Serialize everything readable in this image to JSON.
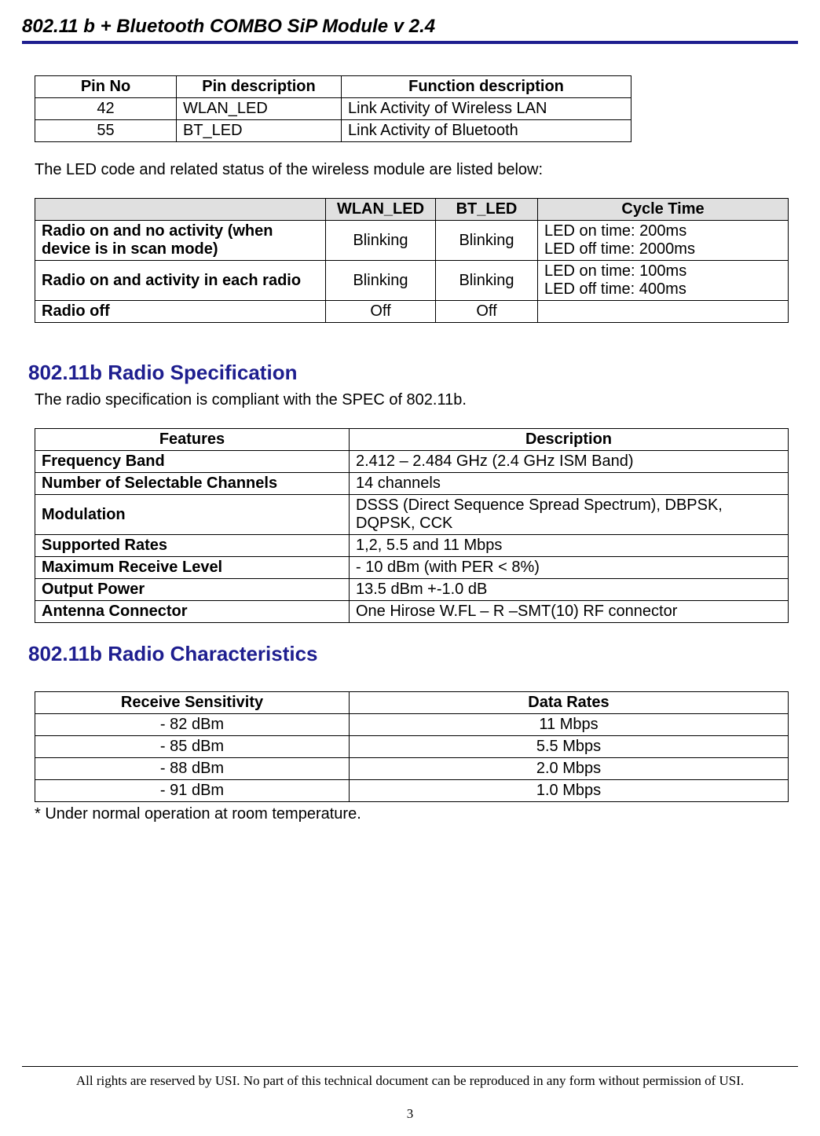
{
  "header": {
    "title": "802.11 b + Bluetooth COMBO SiP Module v 2.4"
  },
  "pin_table": {
    "headers": [
      "Pin No",
      "Pin description",
      "Function description"
    ],
    "rows": [
      [
        "42",
        "WLAN_LED",
        "Link Activity of Wireless LAN"
      ],
      [
        "55",
        "BT_LED",
        "Link Activity of Bluetooth"
      ]
    ]
  },
  "led_intro": "The LED code and related status of the wireless module are listed below:",
  "led_table": {
    "headers": [
      "",
      "WLAN_LED",
      "BT_LED",
      "Cycle  Time"
    ],
    "rows": [
      {
        "state": "Radio on and no activity (when device is in scan mode)",
        "wlan": "Blinking",
        "bt": "Blinking",
        "cycle": "LED on time: 200ms\nLED off time: 2000ms"
      },
      {
        "state": "Radio on and activity in each radio",
        "wlan": "Blinking",
        "bt": "Blinking",
        "cycle": "LED on time: 100ms\nLED off time: 400ms"
      },
      {
        "state": "Radio off",
        "wlan": "Off",
        "bt": "Off",
        "cycle": ""
      }
    ]
  },
  "sections": {
    "radio_spec_title": "802.11b Radio Specification",
    "radio_spec_intro": "The radio specification is compliant with the SPEC of 802.11b.",
    "radio_char_title": "802.11b Radio Characteristics"
  },
  "spec_table": {
    "headers": [
      "Features",
      "Description"
    ],
    "rows": [
      [
        "Frequency Band",
        "2.412 – 2.484 GHz (2.4 GHz ISM Band)"
      ],
      [
        "Number of Selectable Channels",
        "14 channels"
      ],
      [
        "Modulation",
        "DSSS (Direct Sequence Spread Spectrum), DBPSK, DQPSK, CCK"
      ],
      [
        "Supported Rates",
        "1,2, 5.5 and 11 Mbps"
      ],
      [
        "Maximum Receive Level",
        "- 10 dBm (with PER < 8%)"
      ],
      [
        "Output Power",
        "13.5 dBm  +-1.0 dB"
      ],
      [
        "Antenna Connector",
        "One Hirose W.FL – R –SMT(10) RF connector"
      ]
    ]
  },
  "char_table": {
    "headers": [
      "Receive Sensitivity",
      "Data Rates"
    ],
    "rows": [
      [
        "- 82 dBm",
        "11 Mbps"
      ],
      [
        "- 85 dBm",
        "5.5 Mbps"
      ],
      [
        "- 88 dBm",
        "2.0 Mbps"
      ],
      [
        "- 91 dBm",
        "1.0 Mbps"
      ]
    ]
  },
  "char_footnote": "* Under normal operation at room temperature.",
  "footer": {
    "text": "All rights are reserved by USI. No part of this technical document can be reproduced in any form without permission of USI.",
    "page": "3"
  },
  "colors": {
    "accent": "#1e1e8f",
    "table_header_bg": "#e0e0e0",
    "text": "#000000",
    "background": "#ffffff"
  }
}
